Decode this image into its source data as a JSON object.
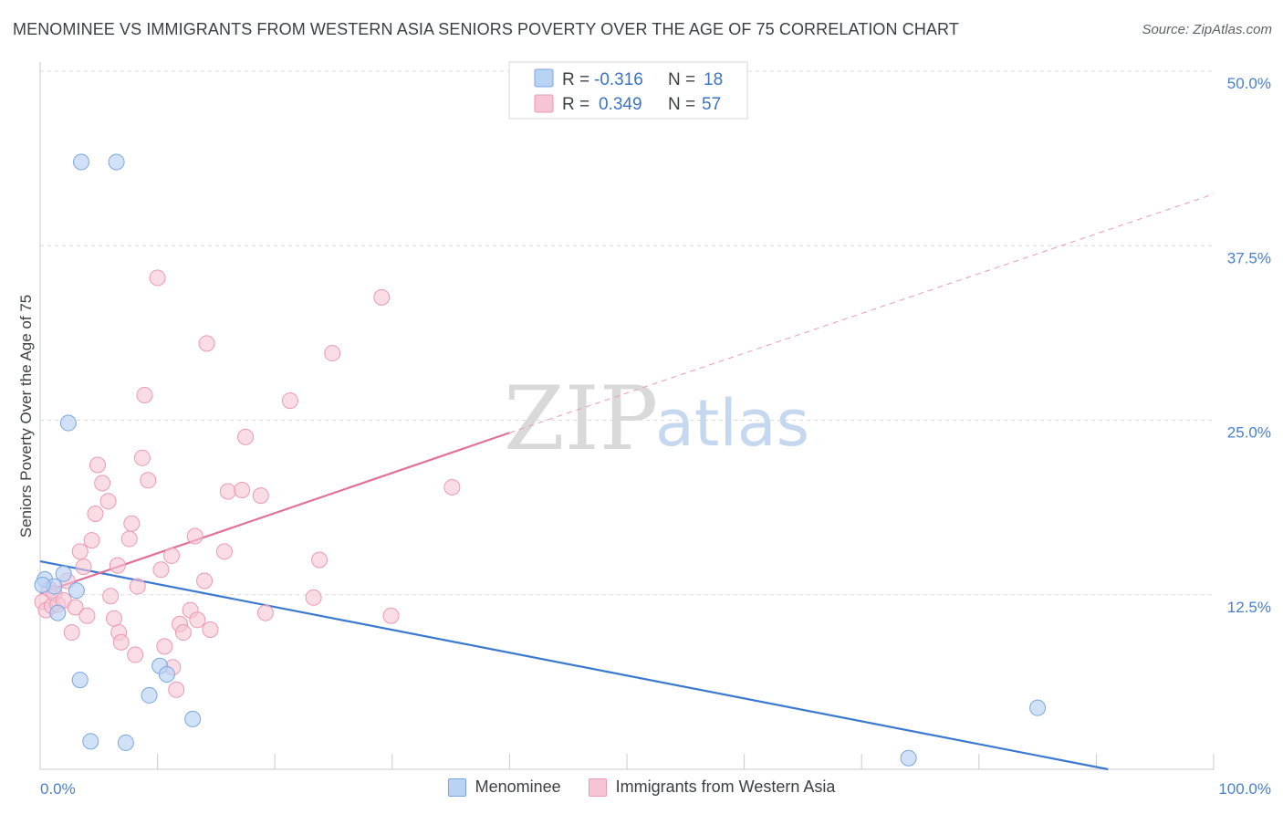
{
  "title": "MENOMINEE VS IMMIGRANTS FROM WESTERN ASIA SENIORS POVERTY OVER THE AGE OF 75 CORRELATION CHART",
  "source": "Source: ZipAtlas.com",
  "watermark": {
    "zip": "ZIP",
    "atlas": "atlas"
  },
  "legend": {
    "series1": {
      "r_label": "R = ",
      "r_value": "-0.316",
      "n_label": "N = ",
      "n_value": "18"
    },
    "series2": {
      "r_label": "R = ",
      "r_value": "0.349",
      "n_label": "N = ",
      "n_value": "57"
    }
  },
  "colors": {
    "blue_fill": "#b9d3f5",
    "blue_stroke": "#7aa6e0",
    "blue_line": "#3b78d0",
    "pink_fill": "#f7c4d3",
    "pink_stroke": "#eb9ab5",
    "pink_line": "#e2709a",
    "grid": "#d9dce3"
  },
  "chart_data": {
    "type": "scatter",
    "title": "MENOMINEE VS IMMIGRANTS FROM WESTERN ASIA SENIORS POVERTY OVER THE AGE OF 75 CORRELATION CHART",
    "xlabel": "",
    "ylabel": "Seniors Poverty Over the Age of 75",
    "xlim": [
      0,
      100
    ],
    "ylim": [
      0,
      50
    ],
    "x_tick_labels": [
      {
        "value": 0,
        "label": "0.0%"
      },
      {
        "value": 100,
        "label": "100.0%"
      }
    ],
    "y_tick_labels": [
      {
        "value": 12.5,
        "label": "12.5%"
      },
      {
        "value": 25,
        "label": "25.0%"
      },
      {
        "value": 37.5,
        "label": "37.5%"
      },
      {
        "value": 50,
        "label": "50.0%"
      }
    ],
    "series": [
      {
        "name": "Menominee",
        "color": "#b9d3f5",
        "points": [
          [
            3.5,
            43.5
          ],
          [
            6.5,
            43.5
          ],
          [
            2.4,
            24.8
          ],
          [
            0.4,
            13.6
          ],
          [
            1.2,
            13.1
          ],
          [
            2.0,
            14.0
          ],
          [
            3.1,
            12.8
          ],
          [
            1.5,
            11.2
          ],
          [
            3.4,
            6.4
          ],
          [
            10.2,
            7.4
          ],
          [
            10.8,
            6.8
          ],
          [
            9.3,
            5.3
          ],
          [
            13.0,
            3.6
          ],
          [
            4.3,
            2.0
          ],
          [
            7.3,
            1.9
          ],
          [
            85.0,
            4.4
          ],
          [
            74.0,
            0.8
          ],
          [
            0.2,
            13.2
          ]
        ],
        "trend": {
          "x": [
            0,
            91
          ],
          "y": [
            14.9,
            0
          ]
        }
      },
      {
        "name": "Immigrants from Western Asia",
        "color": "#f7c4d3",
        "points": [
          [
            0.2,
            12.0
          ],
          [
            0.5,
            11.4
          ],
          [
            0.8,
            12.9
          ],
          [
            1.0,
            11.7
          ],
          [
            1.2,
            12.6
          ],
          [
            1.5,
            11.8
          ],
          [
            2.0,
            12.1
          ],
          [
            2.3,
            13.5
          ],
          [
            2.7,
            9.8
          ],
          [
            3.0,
            11.6
          ],
          [
            3.4,
            15.6
          ],
          [
            3.7,
            14.5
          ],
          [
            4.0,
            11.0
          ],
          [
            4.4,
            16.4
          ],
          [
            4.7,
            18.3
          ],
          [
            4.9,
            21.8
          ],
          [
            5.3,
            20.5
          ],
          [
            5.8,
            19.2
          ],
          [
            6.0,
            12.4
          ],
          [
            6.3,
            10.8
          ],
          [
            6.6,
            14.6
          ],
          [
            6.7,
            9.8
          ],
          [
            6.9,
            9.1
          ],
          [
            7.6,
            16.5
          ],
          [
            7.8,
            17.6
          ],
          [
            8.1,
            8.2
          ],
          [
            8.3,
            13.1
          ],
          [
            8.7,
            22.3
          ],
          [
            8.9,
            26.8
          ],
          [
            9.2,
            20.7
          ],
          [
            10.0,
            35.2
          ],
          [
            10.3,
            14.3
          ],
          [
            10.6,
            8.8
          ],
          [
            11.2,
            15.3
          ],
          [
            11.3,
            7.3
          ],
          [
            11.9,
            10.4
          ],
          [
            12.2,
            9.8
          ],
          [
            12.8,
            11.4
          ],
          [
            13.2,
            16.7
          ],
          [
            13.4,
            10.7
          ],
          [
            14.0,
            13.5
          ],
          [
            14.2,
            30.5
          ],
          [
            14.5,
            10.0
          ],
          [
            15.7,
            15.6
          ],
          [
            16.0,
            19.9
          ],
          [
            17.2,
            20.0
          ],
          [
            17.5,
            23.8
          ],
          [
            18.8,
            19.6
          ],
          [
            19.2,
            11.2
          ],
          [
            21.3,
            26.4
          ],
          [
            23.3,
            12.3
          ],
          [
            23.8,
            15.0
          ],
          [
            24.9,
            29.8
          ],
          [
            29.1,
            33.8
          ],
          [
            29.9,
            11.0
          ],
          [
            35.1,
            20.2
          ],
          [
            11.6,
            5.7
          ]
        ],
        "trend": {
          "x": [
            0,
            40
          ],
          "y": [
            12.6,
            24.1
          ]
        },
        "trend_ext": {
          "x": [
            40,
            100
          ],
          "y": [
            24.1,
            41.2
          ]
        }
      }
    ]
  },
  "bottom_legend": [
    {
      "label": "Menominee"
    },
    {
      "label": "Immigrants from Western Asia"
    }
  ]
}
